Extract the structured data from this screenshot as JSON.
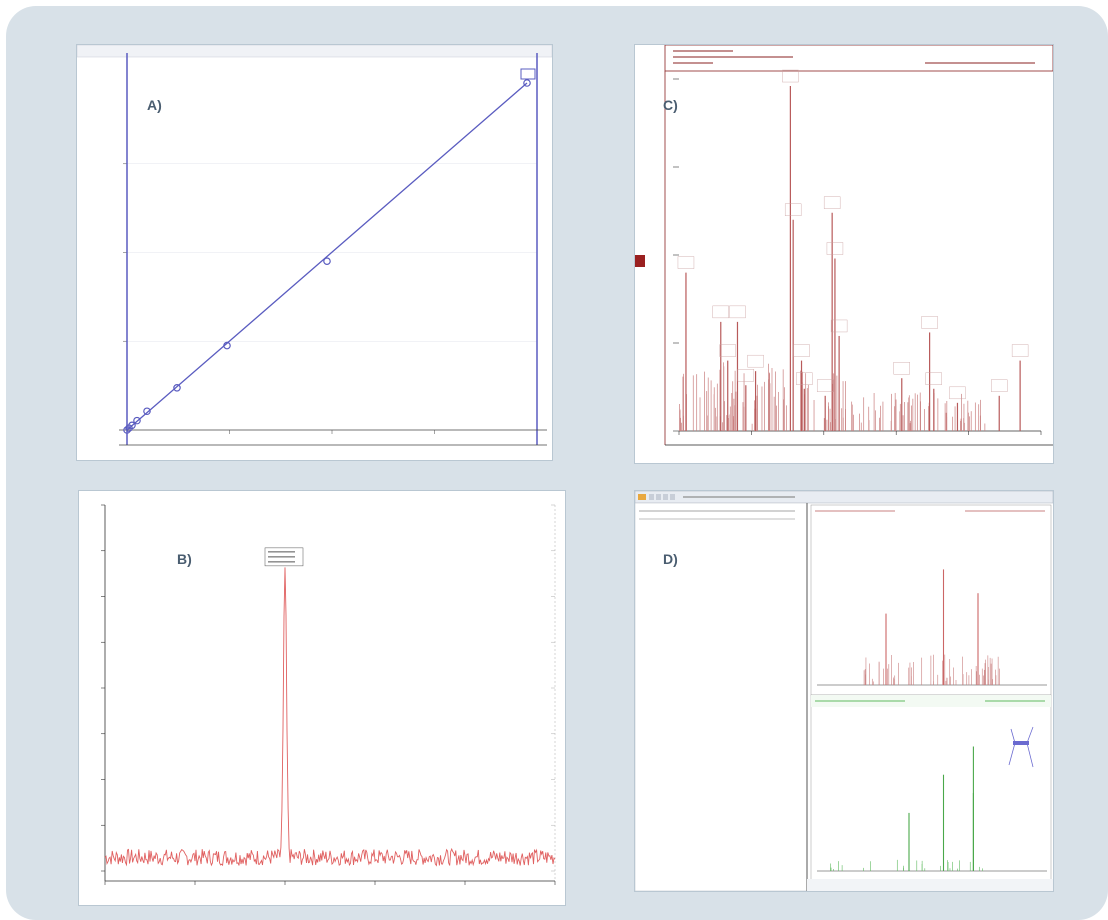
{
  "labels": {
    "a": "A)",
    "b": "B)",
    "c": "C)",
    "d": "D)"
  },
  "colors": {
    "frame": "#d8e1e8",
    "blue": "#5a5cc0",
    "red": "#c97f7f",
    "green": "#5fba5f",
    "label": "#4a5d70"
  },
  "chart_data": [
    {
      "type": "scatter",
      "title": "",
      "series": [
        {
          "x": [
            0.0,
            0.02,
            0.05,
            0.1,
            0.2,
            0.5,
            1.0,
            2.0,
            4.0
          ],
          "y": [
            0.0,
            0.02,
            0.05,
            0.1,
            0.2,
            0.45,
            0.9,
            1.8,
            3.7
          ]
        }
      ],
      "fit_line": true
    },
    {
      "type": "line",
      "title": "",
      "xlim": [
        0,
        100
      ],
      "ylim": [
        0,
        1
      ],
      "peak": {
        "x": 40,
        "y": 0.79
      },
      "noise_level": 0.05
    },
    {
      "type": "bar",
      "title": "",
      "xlim": [
        0,
        260
      ],
      "ylim": [
        0,
        100
      ],
      "peaks": [
        {
          "x": 5,
          "y": 45
        },
        {
          "x": 30,
          "y": 31
        },
        {
          "x": 35,
          "y": 20
        },
        {
          "x": 42,
          "y": 31
        },
        {
          "x": 48,
          "y": 13
        },
        {
          "x": 55,
          "y": 17
        },
        {
          "x": 80,
          "y": 98
        },
        {
          "x": 82,
          "y": 60
        },
        {
          "x": 88,
          "y": 20
        },
        {
          "x": 90,
          "y": 12
        },
        {
          "x": 110,
          "y": 62
        },
        {
          "x": 112,
          "y": 49
        },
        {
          "x": 115,
          "y": 27
        },
        {
          "x": 105,
          "y": 10
        },
        {
          "x": 160,
          "y": 15
        },
        {
          "x": 180,
          "y": 28
        },
        {
          "x": 183,
          "y": 12
        },
        {
          "x": 200,
          "y": 8
        },
        {
          "x": 230,
          "y": 10
        },
        {
          "x": 245,
          "y": 20
        }
      ]
    },
    {
      "type": "bar",
      "title": "",
      "subplots": [
        {
          "name": "top",
          "peaks": [
            {
              "x": 30,
              "y": 42
            },
            {
              "x": 55,
              "y": 68
            },
            {
              "x": 70,
              "y": 54
            }
          ]
        },
        {
          "name": "bottom",
          "peaks": [
            {
              "x": 40,
              "y": 35
            },
            {
              "x": 55,
              "y": 58
            },
            {
              "x": 68,
              "y": 75
            },
            {
              "x": 68,
              "y": 47
            }
          ]
        }
      ]
    }
  ]
}
